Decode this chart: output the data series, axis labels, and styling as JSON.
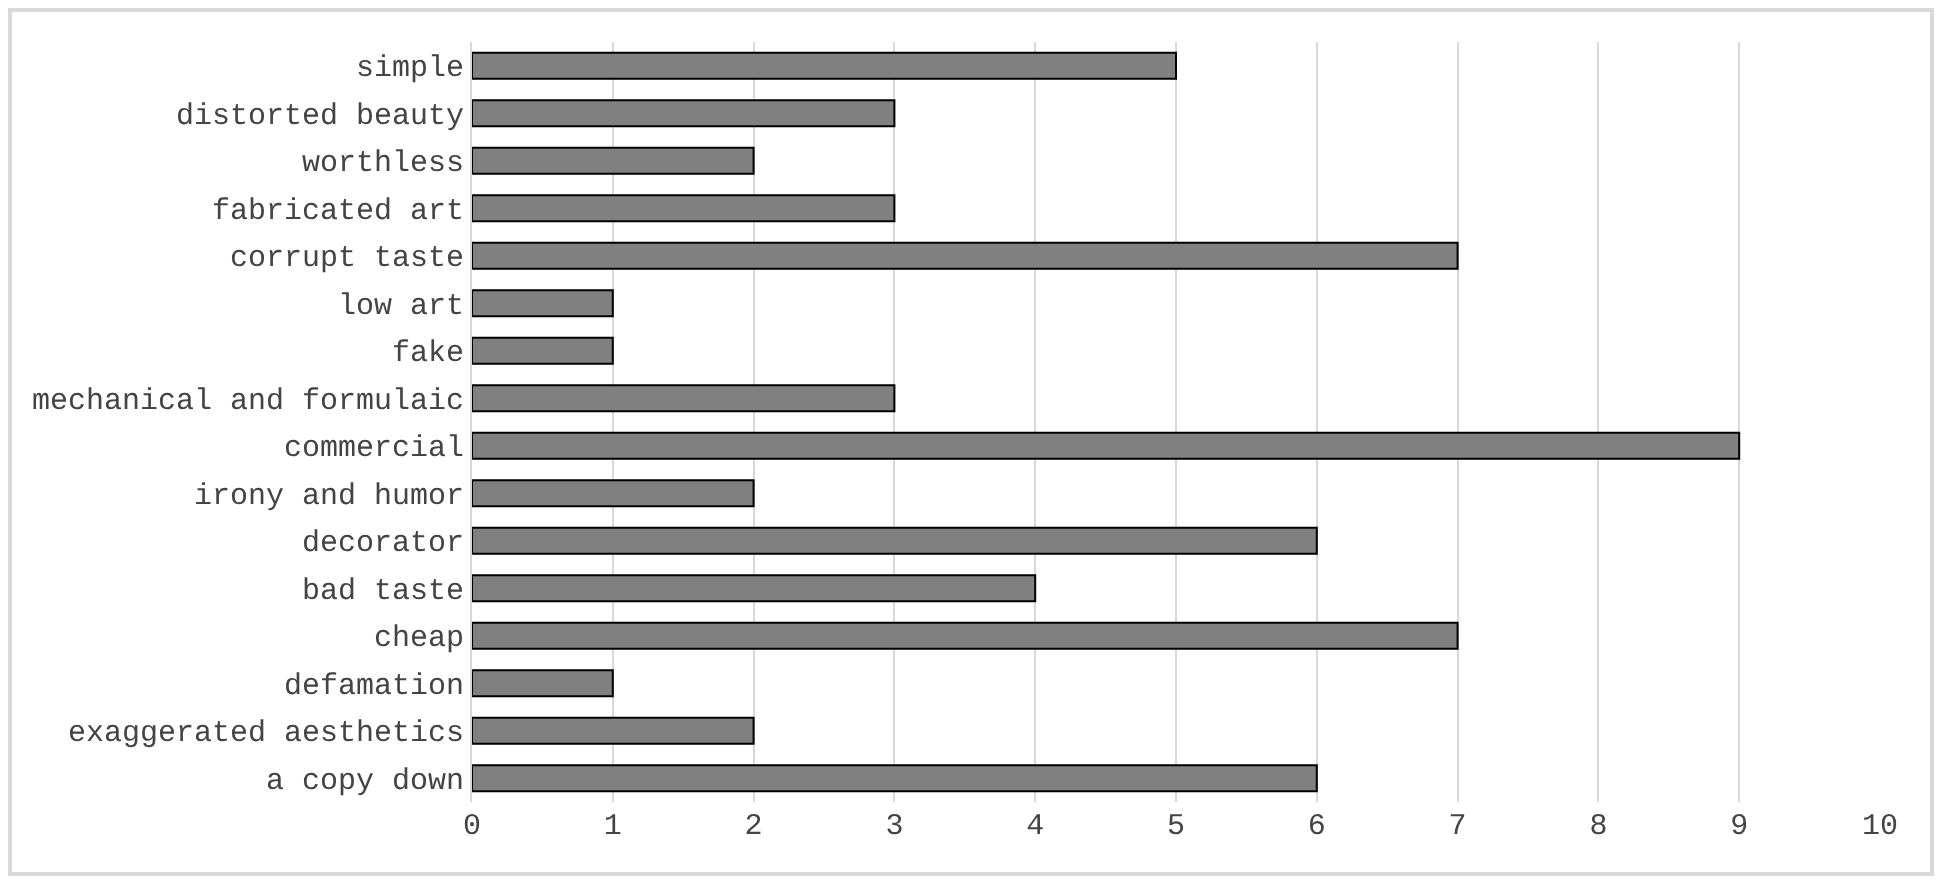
{
  "chart_data": {
    "type": "bar",
    "orientation": "horizontal",
    "categories": [
      "simple",
      "distorted beauty",
      "worthless",
      "fabricated art",
      "corrupt taste",
      "low art",
      "fake",
      "mechanical and formulaic",
      "commercial",
      "irony and humor",
      "decorator",
      "bad taste",
      "cheap",
      "defamation",
      "exaggerated aesthetics",
      "a copy down"
    ],
    "values": [
      5,
      3,
      2,
      3,
      7,
      1,
      1,
      3,
      9,
      2,
      6,
      4,
      7,
      1,
      2,
      6
    ],
    "color": "#808080",
    "xlim": [
      0,
      10
    ],
    "xticks": [
      0,
      1,
      2,
      3,
      4,
      5,
      6,
      7,
      8,
      9,
      10
    ],
    "grid": "x"
  }
}
